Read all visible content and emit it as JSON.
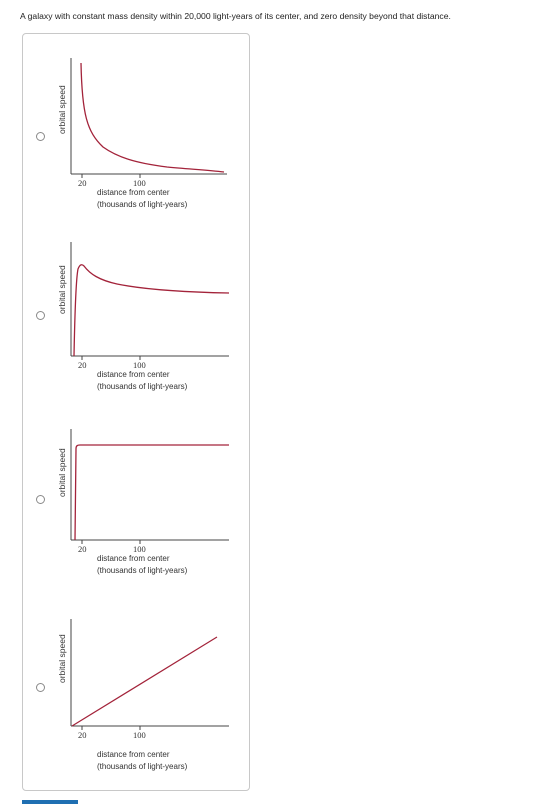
{
  "question": {
    "text": "A galaxy with constant mass density within 20,000 light-years of its center, and zero density beyond that distance."
  },
  "options": [
    {
      "ylabel": "orbital speed",
      "tick_20": "20",
      "tick_100": "100",
      "xlabel_line1": "distance from center",
      "xlabel_line2": "(thousands of light-years)"
    },
    {
      "ylabel": "orbital speed",
      "tick_20": "20",
      "tick_100": "100",
      "xlabel_line1": "distance from center",
      "xlabel_line2": "(thousands of light-years)"
    },
    {
      "ylabel": "orbital speed",
      "tick_20": "20",
      "tick_100": "100",
      "xlabel_line1": "distance from center",
      "xlabel_line2": "(thousands of light-years)"
    },
    {
      "ylabel": "orbital speed",
      "tick_20": "20",
      "tick_100": "100",
      "xlabel_line1": "distance from center",
      "xlabel_line2": "(thousands of light-years)"
    }
  ],
  "colors": {
    "curve": "#a3233a",
    "axis": "#444444",
    "radio_border": "#8a8a8a",
    "accent_tab": "#1f6fb2"
  }
}
